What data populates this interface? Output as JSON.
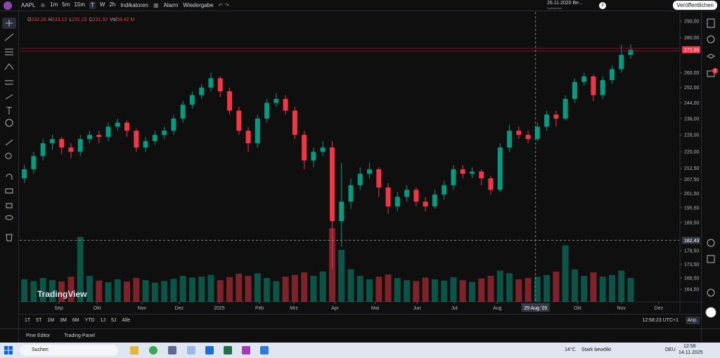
{
  "toolbar": {
    "symbol": "AAPL",
    "intervals": [
      "1m",
      "5m",
      "15m",
      "T",
      "W",
      "2h"
    ],
    "indicators": "Indikatoren",
    "alert": "Alarm",
    "replay": "Wiedergabe",
    "replay_date": "26.11.2020 Be...",
    "replay_mode": "Spielmodus",
    "count": "2",
    "publish": "Veröffentlichen"
  },
  "notifications": "1",
  "chart_data": {
    "type": "candlestick",
    "legend": [
      "O",
      "232,28",
      "H",
      "233,15",
      "L",
      "231,15",
      "C",
      "231,92",
      "Vol",
      "39,42 M"
    ],
    "watermark": "TradingView",
    "up_color": "#089981",
    "down_color": "#f23645",
    "log_scale": true,
    "candles": [
      [
        208,
        214,
        206,
        212
      ],
      [
        212,
        220,
        210,
        218
      ],
      [
        218,
        226,
        216,
        224
      ],
      [
        224,
        228,
        221,
        226
      ],
      [
        226,
        227,
        219,
        222
      ],
      [
        222,
        224,
        217,
        220
      ],
      [
        220,
        228,
        218,
        226
      ],
      [
        226,
        230,
        224,
        228
      ],
      [
        228,
        230,
        224,
        227
      ],
      [
        227,
        234,
        225,
        232
      ],
      [
        232,
        236,
        230,
        234
      ],
      [
        234,
        235,
        227,
        230
      ],
      [
        230,
        231,
        220,
        222
      ],
      [
        222,
        227,
        220,
        225
      ],
      [
        225,
        230,
        223,
        228
      ],
      [
        228,
        232,
        226,
        230
      ],
      [
        230,
        238,
        228,
        236
      ],
      [
        236,
        245,
        234,
        243
      ],
      [
        243,
        250,
        241,
        248
      ],
      [
        248,
        254,
        246,
        252
      ],
      [
        252,
        260,
        250,
        257
      ],
      [
        257,
        258,
        247,
        250
      ],
      [
        250,
        252,
        238,
        240
      ],
      [
        240,
        242,
        228,
        230
      ],
      [
        230,
        232,
        220,
        224
      ],
      [
        224,
        238,
        222,
        236
      ],
      [
        236,
        246,
        234,
        244
      ],
      [
        244,
        249,
        242,
        246
      ],
      [
        246,
        248,
        238,
        240
      ],
      [
        240,
        242,
        226,
        228
      ],
      [
        228,
        230,
        212,
        216
      ],
      [
        216,
        222,
        213,
        220
      ],
      [
        220,
        225,
        218,
        222
      ],
      [
        222,
        225,
        172,
        190
      ],
      [
        190,
        215,
        180,
        198
      ],
      [
        198,
        208,
        195,
        205
      ],
      [
        205,
        213,
        203,
        210
      ],
      [
        210,
        215,
        208,
        212
      ],
      [
        212,
        213,
        200,
        204
      ],
      [
        204,
        206,
        193,
        196
      ],
      [
        196,
        202,
        194,
        200
      ],
      [
        200,
        205,
        198,
        203
      ],
      [
        203,
        204,
        196,
        198
      ],
      [
        198,
        200,
        194,
        196
      ],
      [
        196,
        203,
        195,
        201
      ],
      [
        201,
        207,
        199,
        205
      ],
      [
        205,
        214,
        203,
        212
      ],
      [
        212,
        214,
        208,
        210
      ],
      [
        210,
        213,
        208,
        211
      ],
      [
        211,
        212,
        205,
        208
      ],
      [
        208,
        209,
        201,
        203
      ],
      [
        203,
        224,
        202,
        222
      ],
      [
        222,
        233,
        220,
        230
      ],
      [
        230,
        232,
        226,
        228
      ],
      [
        228,
        230,
        224,
        226
      ],
      [
        226,
        234,
        225,
        232
      ],
      [
        232,
        240,
        230,
        238
      ],
      [
        238,
        240,
        232,
        236
      ],
      [
        236,
        248,
        235,
        246
      ],
      [
        246,
        257,
        244,
        255
      ],
      [
        255,
        260,
        253,
        258
      ],
      [
        258,
        259,
        245,
        248
      ],
      [
        248,
        258,
        246,
        256
      ],
      [
        256,
        264,
        254,
        262
      ],
      [
        262,
        276,
        260,
        270
      ],
      [
        270,
        276,
        268,
        273
      ]
    ],
    "volumes": [
      52,
      48,
      55,
      50,
      47,
      58,
      150,
      60,
      49,
      45,
      52,
      47,
      55,
      50,
      44,
      48,
      53,
      60,
      56,
      58,
      62,
      50,
      57,
      65,
      60,
      66,
      55,
      48,
      58,
      62,
      68,
      60,
      70,
      170,
      120,
      75,
      60,
      52,
      58,
      63,
      55,
      50,
      48,
      56,
      52,
      49,
      57,
      50,
      46,
      54,
      60,
      72,
      66,
      52,
      55,
      58,
      62,
      70,
      130,
      75,
      60,
      68,
      58,
      62,
      72,
      55
    ],
    "ylim": [
      160.2,
      293.5
    ],
    "yticks": [
      {
        "value": 290,
        "label": "290,00"
      },
      {
        "value": 280,
        "label": "280,00"
      },
      {
        "value": 260,
        "label": "260,00"
      },
      {
        "value": 252,
        "label": "252,00"
      },
      {
        "value": 244,
        "label": "244,00"
      },
      {
        "value": 236,
        "label": "236,00"
      },
      {
        "value": 228,
        "label": "228,00"
      },
      {
        "value": 220,
        "label": "220,00"
      },
      {
        "value": 212.5,
        "label": "212,50"
      },
      {
        "value": 207.5,
        "label": "207,50"
      },
      {
        "value": 201.5,
        "label": "201,50"
      },
      {
        "value": 195.5,
        "label": "195,50"
      },
      {
        "value": 189.5,
        "label": "189,50"
      },
      {
        "value": 178.5,
        "label": "178,50"
      },
      {
        "value": 173.5,
        "label": "173,50"
      },
      {
        "value": 168.5,
        "label": "168,50"
      },
      {
        "value": 164.5,
        "label": "164,50"
      }
    ],
    "xlim": [
      -0.5,
      70.2
    ],
    "xticks": [
      {
        "value": 3.7,
        "label": "Sep"
      },
      {
        "value": 7.8,
        "label": "Okt"
      },
      {
        "value": 12.6,
        "label": "Nov"
      },
      {
        "value": 16.6,
        "label": "Dez"
      },
      {
        "value": 20.9,
        "label": "2025"
      },
      {
        "value": 25.2,
        "label": "Feb"
      },
      {
        "value": 28.9,
        "label": "Mrz"
      },
      {
        "value": 33.3,
        "label": "Apr"
      },
      {
        "value": 37.6,
        "label": "Mai"
      },
      {
        "value": 42.1,
        "label": "Jun"
      },
      {
        "value": 46.1,
        "label": "Jul"
      },
      {
        "value": 50.7,
        "label": "Aug"
      },
      {
        "value": 59.3,
        "label": "Okt"
      },
      {
        "value": 64.0,
        "label": "Nov"
      },
      {
        "value": 68.0,
        "label": "Dez"
      }
    ],
    "last_price": {
      "value": 272.95,
      "label": "272,95"
    },
    "crosshair": {
      "price": {
        "value": 182.43,
        "label": "182,43"
      },
      "time": {
        "value": 54.8,
        "label": "29 Aug '25"
      }
    }
  },
  "ranges": [
    "1T",
    "5T",
    "1M",
    "3M",
    "6M",
    "YTD",
    "1J",
    "5J",
    "Alle"
  ],
  "clock": "12:58:23 UTC+1",
  "scale_mode": "Anp.",
  "panels": [
    "Pine Editor",
    "Trading-Panel"
  ],
  "taskbar": {
    "search": "Suchen",
    "temp": "14°C",
    "weather": "Stark bewölkt",
    "lang": "DEU",
    "time": "12:58",
    "date": "14.11.2025"
  }
}
